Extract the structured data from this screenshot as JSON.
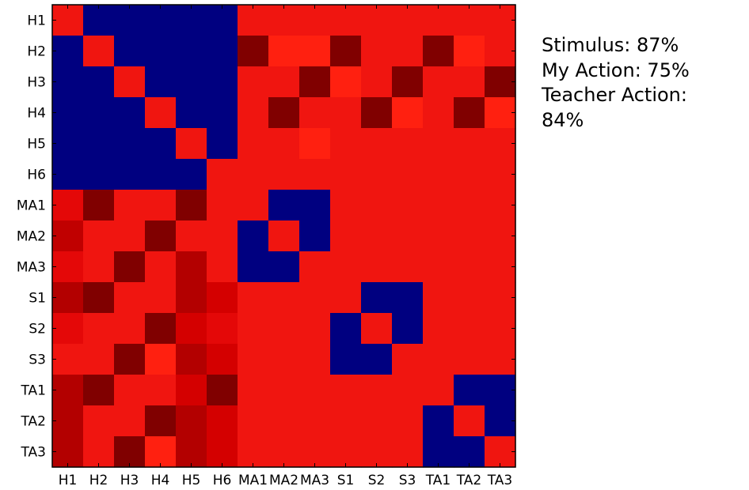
{
  "chart_data": {
    "type": "heatmap",
    "title": "",
    "xlabel": "",
    "ylabel": "",
    "grid": false,
    "legend": "none",
    "labels": [
      "H1",
      "H2",
      "H3",
      "H4",
      "H5",
      "H6",
      "MA1",
      "MA2",
      "MA3",
      "S1",
      "S2",
      "S3",
      "TA1",
      "TA2",
      "TA3"
    ],
    "colors": {
      "0": "#000080",
      "1": "#f01510",
      "2": "#d40000",
      "3": "#b30000",
      "4": "#800000",
      "5": "#ff2010",
      "6": "#e40808",
      "7": "#c00000"
    },
    "matrix": [
      [
        1,
        0,
        0,
        0,
        0,
        0,
        1,
        1,
        1,
        1,
        1,
        1,
        1,
        1,
        1
      ],
      [
        0,
        1,
        0,
        0,
        0,
        0,
        4,
        5,
        5,
        4,
        1,
        1,
        4,
        5,
        1
      ],
      [
        0,
        0,
        1,
        0,
        0,
        0,
        1,
        1,
        4,
        5,
        1,
        4,
        1,
        1,
        4
      ],
      [
        0,
        0,
        0,
        1,
        0,
        0,
        1,
        4,
        1,
        1,
        4,
        5,
        1,
        4,
        5
      ],
      [
        0,
        0,
        0,
        0,
        1,
        0,
        1,
        1,
        5,
        1,
        1,
        1,
        1,
        1,
        1
      ],
      [
        0,
        0,
        0,
        0,
        0,
        1,
        1,
        1,
        1,
        1,
        1,
        1,
        1,
        1,
        1
      ],
      [
        6,
        4,
        1,
        1,
        4,
        1,
        1,
        0,
        0,
        1,
        1,
        1,
        1,
        1,
        1
      ],
      [
        7,
        1,
        1,
        4,
        1,
        1,
        0,
        1,
        0,
        1,
        1,
        1,
        1,
        1,
        1
      ],
      [
        6,
        1,
        4,
        1,
        3,
        1,
        0,
        0,
        1,
        1,
        1,
        1,
        1,
        1,
        1
      ],
      [
        3,
        4,
        1,
        1,
        3,
        2,
        1,
        1,
        1,
        1,
        0,
        0,
        1,
        1,
        1
      ],
      [
        6,
        1,
        1,
        4,
        2,
        6,
        1,
        1,
        1,
        0,
        1,
        0,
        1,
        1,
        1
      ],
      [
        1,
        1,
        4,
        5,
        3,
        2,
        1,
        1,
        1,
        0,
        0,
        1,
        1,
        1,
        1
      ],
      [
        3,
        4,
        1,
        1,
        2,
        4,
        1,
        1,
        1,
        1,
        1,
        1,
        1,
        0,
        0
      ],
      [
        3,
        1,
        1,
        4,
        3,
        2,
        1,
        1,
        1,
        1,
        1,
        1,
        0,
        1,
        0
      ],
      [
        3,
        1,
        4,
        5,
        3,
        2,
        1,
        1,
        1,
        1,
        1,
        1,
        0,
        0,
        1
      ]
    ]
  },
  "side_text": {
    "stimulus": "Stimulus: 87%",
    "my_action": "My Action: 75%",
    "teacher_action": "Teacher Action:",
    "teacher_value": "84%"
  }
}
